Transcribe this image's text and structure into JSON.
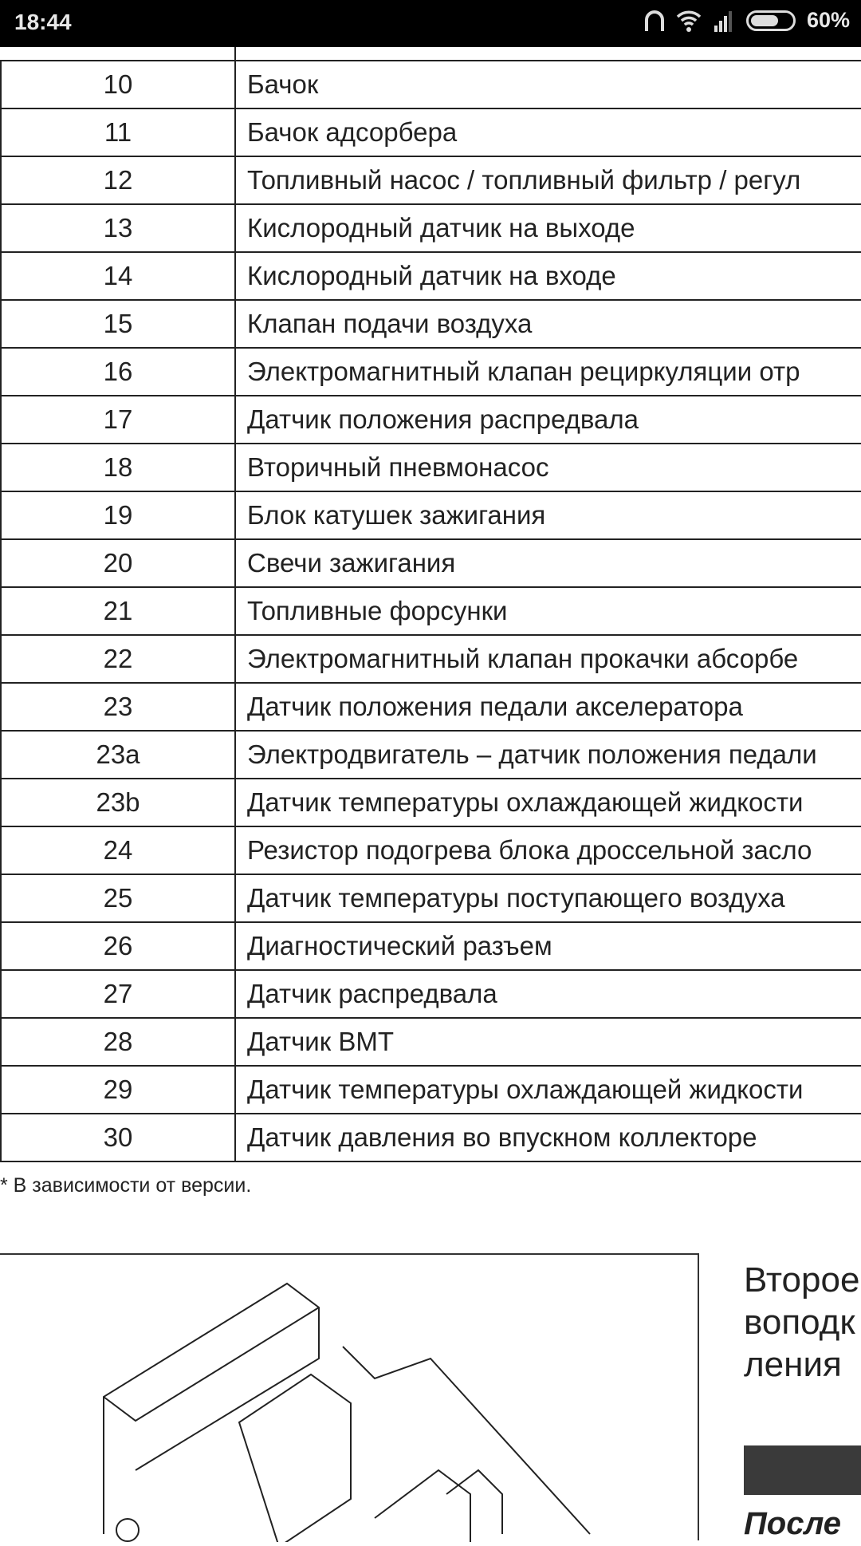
{
  "status_bar": {
    "time": "18:44",
    "battery": "60%",
    "battery_level": 0.6,
    "icons": [
      "headphones-icon",
      "wifi-icon",
      "signal-icon",
      "battery-icon"
    ]
  },
  "table": {
    "rows": [
      {
        "num": "10",
        "text": "Бачок"
      },
      {
        "num": "11",
        "text": "Бачок адсорбера"
      },
      {
        "num": "12",
        "text": "Топливный насос / топливный фильтр / регул"
      },
      {
        "num": "13",
        "text": "Кислородный датчик на выходе"
      },
      {
        "num": "14",
        "text": "Кислородный датчик на входе"
      },
      {
        "num": "15",
        "text": "Клапан подачи воздуха"
      },
      {
        "num": "16",
        "text": "Электромагнитный клапан рециркуляции отр"
      },
      {
        "num": "17",
        "text": "Датчик положения распредвала"
      },
      {
        "num": "18",
        "text": "Вторичный пневмонасос"
      },
      {
        "num": "19",
        "text": "Блок катушек зажигания"
      },
      {
        "num": "20",
        "text": "Свечи зажигания"
      },
      {
        "num": "21",
        "text": "Топливные форсунки"
      },
      {
        "num": "22",
        "text": "Электромагнитный клапан прокачки абсорбе"
      },
      {
        "num": "23",
        "text": "Датчик положения педали акселератора"
      },
      {
        "num": "23a",
        "text": "Электродвигатель – датчик положения педали"
      },
      {
        "num": "23b",
        "text": "Датчик температуры охлаждающей жидкости"
      },
      {
        "num": "24",
        "text": "Резистор подогрева блока дроссельной засло"
      },
      {
        "num": "25",
        "text": "Датчик температуры поступающего воздуха"
      },
      {
        "num": "26",
        "text": "Диагностический разъем"
      },
      {
        "num": "27",
        "text": "Датчик распредвала"
      },
      {
        "num": "28",
        "text": "Датчик ВМТ"
      },
      {
        "num": "29",
        "text": "Датчик температуры охлаждающей жидкости"
      },
      {
        "num": "30",
        "text": "Датчик давления во впускном коллекторе"
      }
    ]
  },
  "footnote": "* В зависимости от версии.",
  "side_text": {
    "line1": "Второе",
    "line2": "воподк",
    "line3": "ления",
    "after": "После"
  }
}
